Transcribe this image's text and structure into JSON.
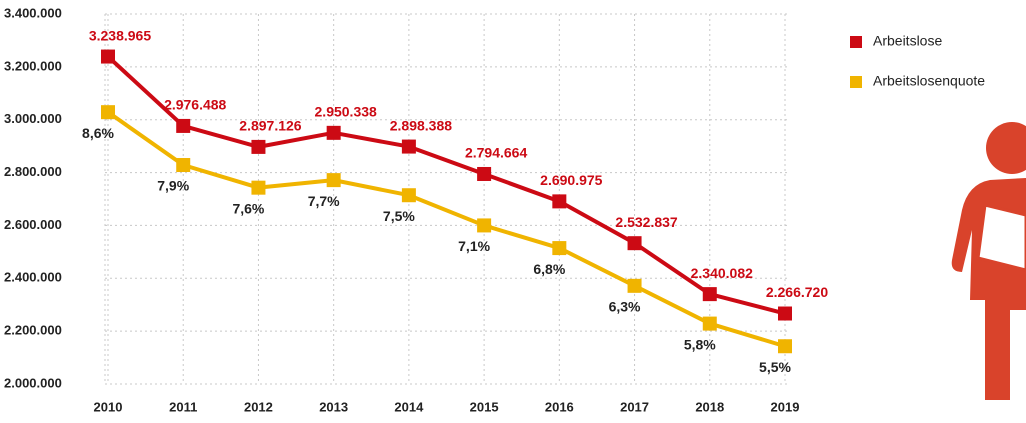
{
  "chart_data": {
    "type": "line",
    "categories": [
      "2010",
      "2011",
      "2012",
      "2013",
      "2014",
      "2015",
      "2016",
      "2017",
      "2018",
      "2019"
    ],
    "series": [
      {
        "name": "Arbeitslose",
        "color": "#cc0a14",
        "values": [
          3238965,
          2976488,
          2897126,
          2950338,
          2898388,
          2794664,
          2690975,
          2532837,
          2340082,
          2266720
        ],
        "value_labels": [
          "3.238.965",
          "2.976.488",
          "2.897.126",
          "2.950.338",
          "2.898.388",
          "2.794.664",
          "2.690.975",
          "2.532.837",
          "2.340.082",
          "2.266.720"
        ]
      },
      {
        "name": "Arbeitslosenquote",
        "color": "#f0b400",
        "axis": "y2",
        "values": [
          8.6,
          7.9,
          7.6,
          7.7,
          7.5,
          7.1,
          6.8,
          6.3,
          5.8,
          5.5
        ],
        "value_labels": [
          "8,6%",
          "7,9%",
          "7,6%",
          "7,7%",
          "7,5%",
          "7,1%",
          "6,8%",
          "6,3%",
          "5,8%",
          "5,5%"
        ]
      }
    ],
    "ylim": [
      2000000,
      3400000
    ],
    "yticks": [
      {
        "value": 2000000,
        "label": "2.000.000"
      },
      {
        "value": 2200000,
        "label": "2.200.000"
      },
      {
        "value": 2400000,
        "label": "2.400.000"
      },
      {
        "value": 2600000,
        "label": "2.600.000"
      },
      {
        "value": 2800000,
        "label": "2.800.000"
      },
      {
        "value": 3000000,
        "label": "3.000.000"
      },
      {
        "value": 3200000,
        "label": "3.200.000"
      },
      {
        "value": 3400000,
        "label": "3.400.000"
      }
    ],
    "y2lim": [
      5.0,
      9.9
    ],
    "grid": true,
    "legend": "right"
  }
}
